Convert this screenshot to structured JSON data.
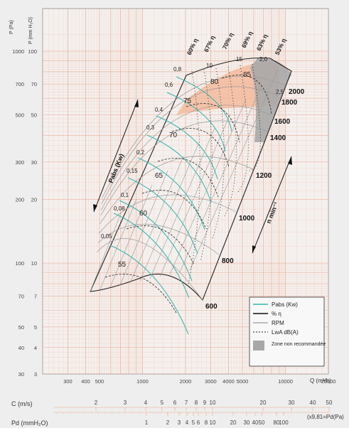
{
  "chart_data": {
    "type": "fan_performance_curve",
    "x_axis": {
      "label": "Q (m³/h)",
      "scale": "log",
      "range": [
        200,
        20000
      ],
      "ticks": [
        "300",
        "400",
        "500",
        "1000",
        "2000",
        "3000",
        "4000",
        "5000",
        "10000",
        "20000"
      ]
    },
    "y_axis_left": {
      "label_pa": "P (Pa)",
      "label_mm": "P (mm H₂O)",
      "scale": "log",
      "range_pa": [
        30,
        1000
      ],
      "ticks_pa": [
        "30",
        "40",
        "50",
        "70",
        "100",
        "200",
        "300",
        "500",
        "700",
        "1000"
      ],
      "ticks_mm": [
        "3",
        "4",
        "5",
        "7",
        "10",
        "20",
        "30",
        "50",
        "70",
        "100"
      ]
    },
    "c_axis": {
      "label": "C (m/s)",
      "ticks": [
        "2",
        "3",
        "4",
        "5",
        "6",
        "7",
        "8",
        "9",
        "10",
        "20",
        "30",
        "40",
        "50"
      ]
    },
    "pd_axis": {
      "label": "Pd (mmH₂O)",
      "note": "(x9,81=Pd(Pa)",
      "ticks": [
        "1",
        "2",
        "3",
        "4",
        "5",
        "6",
        "8",
        "10",
        "20",
        "30",
        "40",
        "50",
        "80",
        "100"
      ]
    },
    "rpm_curves": [
      "600",
      "800",
      "1000",
      "1200",
      "1400",
      "1600",
      "1800",
      "2000"
    ],
    "power_labels": [
      "0,05",
      "0,08",
      "0,1",
      "0,15",
      "0,2",
      "0,3",
      "0,4",
      "0,6",
      "0,8",
      "10",
      "15",
      "2,0",
      "2,5"
    ],
    "efficiency_labels": [
      "60% η",
      "67% η",
      "70% η",
      "69% η",
      "63% η",
      "53% η"
    ],
    "noise_labels": [
      "55",
      "60",
      "65",
      "70",
      "75",
      "80",
      "85"
    ],
    "pabs_label": "Pabs (Kw)",
    "rpm_label": "n  min⁻¹",
    "legend": [
      {
        "label": "Pabs (Kw)",
        "color": "#33b5ad"
      },
      {
        "label": "% η",
        "color": "#111111"
      },
      {
        "label": "RPM",
        "color": "#9a9a9a"
      },
      {
        "label": "LwA dB(A)",
        "color": "#222222"
      },
      {
        "label": "Zone non recommandée",
        "color": "#a8a8a8"
      }
    ],
    "grid": true
  }
}
